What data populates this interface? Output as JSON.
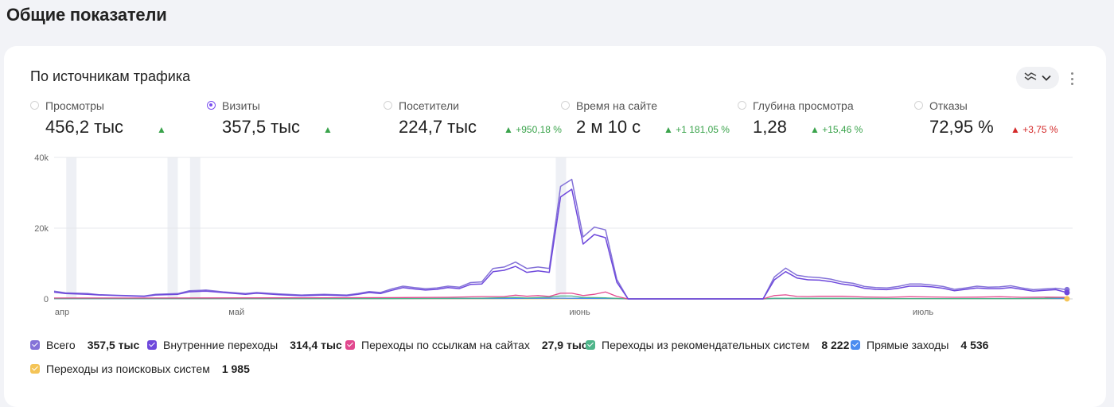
{
  "page_title": "Общие показатели",
  "card": {
    "title": "По источникам трафика"
  },
  "metrics": [
    {
      "label": "Просмотры",
      "value": "456,2 тыс",
      "trend": "▲",
      "selected": false
    },
    {
      "label": "Визиты",
      "value": "357,5 тыс",
      "trend": "▲",
      "selected": true
    },
    {
      "label": "Посетители",
      "value": "224,7 тыс",
      "trend": "▲ +950,18 %",
      "selected": false
    },
    {
      "label": "Время на сайте",
      "value": "2 м 10 с",
      "trend": "▲ +1 181,05 %",
      "selected": false
    },
    {
      "label": "Глубина просмотра",
      "value": "1,28",
      "trend": "▲ +15,46 %",
      "selected": false
    },
    {
      "label": "Отказы",
      "value": "72,95 %",
      "trend": "▲ +3,75 %",
      "selected": false
    }
  ],
  "colors": {
    "accent": "#7a4ff0",
    "trend_up": "#3aa34b",
    "trend_bad": "#d42a2a",
    "total": "#8472d8",
    "internal": "#6e48dc",
    "links": "#e2498f",
    "recommend": "#4fb58a",
    "direct": "#4a8cf0",
    "search": "#f4c457"
  },
  "icons": {
    "view_toggle": "chart-lines-icon",
    "dropdown": "chevron-down-icon",
    "more": "more-vertical-icon"
  },
  "legend": [
    {
      "name": "Всего",
      "value": "357,5 тыс",
      "color": "#8472d8"
    },
    {
      "name": "Внутренние переходы",
      "value": "314,4 тыс",
      "color": "#6e48dc"
    },
    {
      "name": "Переходы по ссылкам на сайтах",
      "value": "27,9 тыс",
      "color": "#e2498f"
    },
    {
      "name": "Переходы из рекомендательных систем",
      "value": "8 222",
      "color": "#4fb58a"
    },
    {
      "name": "Прямые заходы",
      "value": "4 536",
      "color": "#4a8cf0"
    },
    {
      "name": "Переходы из поисковых систем",
      "value": "1 985",
      "color": "#f4c457"
    }
  ],
  "chart_data": {
    "type": "line",
    "title": "",
    "xlabel": "",
    "ylabel": "",
    "ylim": [
      0,
      40000
    ],
    "y_ticks": [
      "0",
      "20k",
      "40k"
    ],
    "y_tick_values": [
      0,
      20000,
      40000
    ],
    "x_tick_labels": [
      "апр",
      "май",
      "июнь",
      "июль"
    ],
    "x_tick_index": [
      0,
      31,
      92,
      153
    ],
    "grid": true,
    "highlighted_x_index": [
      3,
      21,
      25,
      90
    ],
    "series": [
      {
        "name": "Всего",
        "color": "#8472d8",
        "points": [
          [
            0,
            2200
          ],
          [
            2,
            1700
          ],
          [
            6,
            1500
          ],
          [
            8,
            1200
          ],
          [
            12,
            1000
          ],
          [
            16,
            800
          ],
          [
            18,
            1300
          ],
          [
            22,
            1500
          ],
          [
            24,
            2300
          ],
          [
            27,
            2500
          ],
          [
            30,
            2000
          ],
          [
            34,
            1500
          ],
          [
            36,
            1800
          ],
          [
            40,
            1400
          ],
          [
            44,
            1100
          ],
          [
            48,
            1300
          ],
          [
            52,
            1100
          ],
          [
            54,
            1500
          ],
          [
            56,
            2100
          ],
          [
            58,
            1800
          ],
          [
            60,
            2800
          ],
          [
            62,
            3600
          ],
          [
            64,
            3200
          ],
          [
            66,
            2900
          ],
          [
            68,
            3100
          ],
          [
            70,
            3600
          ],
          [
            72,
            3300
          ],
          [
            74,
            4600
          ],
          [
            76,
            4800
          ],
          [
            78,
            8600
          ],
          [
            80,
            9000
          ],
          [
            82,
            10400
          ],
          [
            84,
            8600
          ],
          [
            86,
            9000
          ],
          [
            88,
            8600
          ],
          [
            90,
            31800
          ],
          [
            92,
            33800
          ],
          [
            94,
            17500
          ],
          [
            96,
            20300
          ],
          [
            98,
            19500
          ],
          [
            100,
            5500
          ],
          [
            102,
            0
          ],
          [
            126,
            0
          ],
          [
            128,
            6200
          ],
          [
            130,
            8700
          ],
          [
            132,
            6700
          ],
          [
            134,
            6200
          ],
          [
            136,
            6000
          ],
          [
            138,
            5600
          ],
          [
            140,
            4800
          ],
          [
            142,
            4400
          ],
          [
            144,
            3500
          ],
          [
            146,
            3200
          ],
          [
            148,
            3100
          ],
          [
            150,
            3500
          ],
          [
            152,
            4200
          ],
          [
            154,
            4200
          ],
          [
            156,
            3900
          ],
          [
            158,
            3500
          ],
          [
            160,
            2700
          ],
          [
            162,
            3100
          ],
          [
            164,
            3600
          ],
          [
            166,
            3300
          ],
          [
            168,
            3400
          ],
          [
            170,
            3700
          ],
          [
            172,
            3100
          ],
          [
            174,
            2600
          ],
          [
            176,
            2800
          ],
          [
            178,
            3000
          ],
          [
            180,
            2600
          ]
        ]
      },
      {
        "name": "Внутренние переходы",
        "color": "#6e48dc",
        "points": [
          [
            0,
            1900
          ],
          [
            2,
            1500
          ],
          [
            6,
            1300
          ],
          [
            8,
            1100
          ],
          [
            12,
            900
          ],
          [
            16,
            700
          ],
          [
            18,
            1100
          ],
          [
            22,
            1300
          ],
          [
            24,
            2000
          ],
          [
            27,
            2200
          ],
          [
            30,
            1800
          ],
          [
            34,
            1300
          ],
          [
            36,
            1600
          ],
          [
            40,
            1200
          ],
          [
            44,
            900
          ],
          [
            48,
            1100
          ],
          [
            52,
            900
          ],
          [
            54,
            1300
          ],
          [
            56,
            1800
          ],
          [
            58,
            1500
          ],
          [
            60,
            2400
          ],
          [
            62,
            3200
          ],
          [
            64,
            2800
          ],
          [
            66,
            2500
          ],
          [
            68,
            2700
          ],
          [
            70,
            3200
          ],
          [
            72,
            2900
          ],
          [
            74,
            4100
          ],
          [
            76,
            4200
          ],
          [
            78,
            7700
          ],
          [
            80,
            8100
          ],
          [
            82,
            9200
          ],
          [
            84,
            7500
          ],
          [
            86,
            7900
          ],
          [
            88,
            7500
          ],
          [
            90,
            28800
          ],
          [
            92,
            31000
          ],
          [
            94,
            15500
          ],
          [
            96,
            18200
          ],
          [
            98,
            17300
          ],
          [
            100,
            4700
          ],
          [
            102,
            0
          ],
          [
            126,
            0
          ],
          [
            128,
            5400
          ],
          [
            130,
            7700
          ],
          [
            132,
            5900
          ],
          [
            134,
            5400
          ],
          [
            136,
            5300
          ],
          [
            138,
            4900
          ],
          [
            140,
            4200
          ],
          [
            142,
            3800
          ],
          [
            144,
            3000
          ],
          [
            146,
            2700
          ],
          [
            148,
            2600
          ],
          [
            150,
            3000
          ],
          [
            152,
            3600
          ],
          [
            154,
            3600
          ],
          [
            156,
            3400
          ],
          [
            158,
            3000
          ],
          [
            160,
            2300
          ],
          [
            162,
            2700
          ],
          [
            164,
            3100
          ],
          [
            166,
            2900
          ],
          [
            168,
            2900
          ],
          [
            170,
            3200
          ],
          [
            172,
            2700
          ],
          [
            174,
            2200
          ],
          [
            176,
            2400
          ],
          [
            178,
            2600
          ],
          [
            180,
            1800
          ]
        ]
      },
      {
        "name": "Переходы по ссылкам на сайтах",
        "color": "#e2498f",
        "points": [
          [
            0,
            250
          ],
          [
            20,
            250
          ],
          [
            40,
            300
          ],
          [
            60,
            350
          ],
          [
            70,
            450
          ],
          [
            76,
            650
          ],
          [
            80,
            650
          ],
          [
            82,
            1050
          ],
          [
            84,
            750
          ],
          [
            86,
            950
          ],
          [
            88,
            700
          ],
          [
            90,
            1600
          ],
          [
            92,
            1600
          ],
          [
            94,
            950
          ],
          [
            96,
            1300
          ],
          [
            98,
            1950
          ],
          [
            100,
            700
          ],
          [
            102,
            0
          ],
          [
            126,
            0
          ],
          [
            128,
            950
          ],
          [
            130,
            1150
          ],
          [
            132,
            700
          ],
          [
            134,
            650
          ],
          [
            136,
            750
          ],
          [
            140,
            750
          ],
          [
            144,
            550
          ],
          [
            148,
            450
          ],
          [
            152,
            600
          ],
          [
            156,
            550
          ],
          [
            160,
            450
          ],
          [
            164,
            500
          ],
          [
            168,
            600
          ],
          [
            172,
            450
          ],
          [
            176,
            500
          ],
          [
            180,
            450
          ]
        ]
      },
      {
        "name": "Переходы из рекомендательных систем",
        "color": "#4fb58a",
        "points": [
          [
            0,
            80
          ],
          [
            60,
            100
          ],
          [
            76,
            200
          ],
          [
            82,
            400
          ],
          [
            84,
            250
          ],
          [
            88,
            500
          ],
          [
            90,
            800
          ],
          [
            92,
            800
          ],
          [
            94,
            400
          ],
          [
            96,
            350
          ],
          [
            98,
            300
          ],
          [
            100,
            150
          ],
          [
            102,
            0
          ],
          [
            126,
            0
          ],
          [
            128,
            200
          ],
          [
            132,
            150
          ],
          [
            140,
            150
          ],
          [
            150,
            100
          ],
          [
            160,
            80
          ],
          [
            170,
            100
          ],
          [
            176,
            150
          ],
          [
            180,
            400
          ]
        ]
      },
      {
        "name": "Прямые заходы",
        "color": "#4a8cf0",
        "points": [
          [
            0,
            60
          ],
          [
            60,
            80
          ],
          [
            80,
            120
          ],
          [
            90,
            200
          ],
          [
            94,
            150
          ],
          [
            100,
            80
          ],
          [
            102,
            0
          ],
          [
            126,
            0
          ],
          [
            128,
            80
          ],
          [
            150,
            80
          ],
          [
            180,
            100
          ]
        ]
      },
      {
        "name": "Переходы из поисковых систем",
        "color": "#f4c457",
        "points": [
          [
            0,
            30
          ],
          [
            60,
            40
          ],
          [
            90,
            60
          ],
          [
            100,
            40
          ],
          [
            102,
            0
          ],
          [
            126,
            0
          ],
          [
            128,
            40
          ],
          [
            150,
            30
          ],
          [
            180,
            30
          ]
        ]
      }
    ]
  }
}
